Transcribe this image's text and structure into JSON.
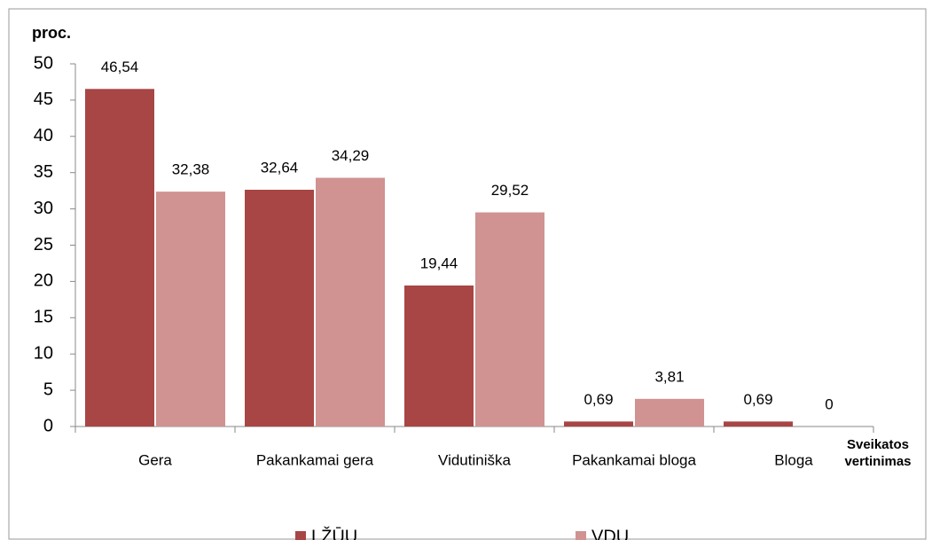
{
  "chart_data": {
    "type": "bar",
    "ylabel": "proc.",
    "xlabel": [
      "Sveikatos",
      "vertinimas"
    ],
    "categories": [
      "Gera",
      "Pakankamai gera",
      "Vidutiniška",
      "Pakankamai bloga",
      "Bloga"
    ],
    "series": [
      {
        "name": "LŽŪU",
        "color": "#a84545",
        "values": [
          46.54,
          32.64,
          19.44,
          0.69,
          0.69
        ],
        "value_labels": [
          "46,54",
          "32,64",
          "19,44",
          "0,69",
          "0,69"
        ]
      },
      {
        "name": "VDU",
        "color": "#d19292",
        "values": [
          32.38,
          34.29,
          29.52,
          3.81,
          0
        ],
        "value_labels": [
          "32,38",
          "34,29",
          "29,52",
          "3,81",
          "0"
        ]
      }
    ],
    "ylim": [
      0,
      50
    ],
    "yticks": [
      0,
      5,
      10,
      15,
      20,
      25,
      30,
      35,
      40,
      45,
      50
    ],
    "grid": false,
    "legend": "bottom"
  }
}
